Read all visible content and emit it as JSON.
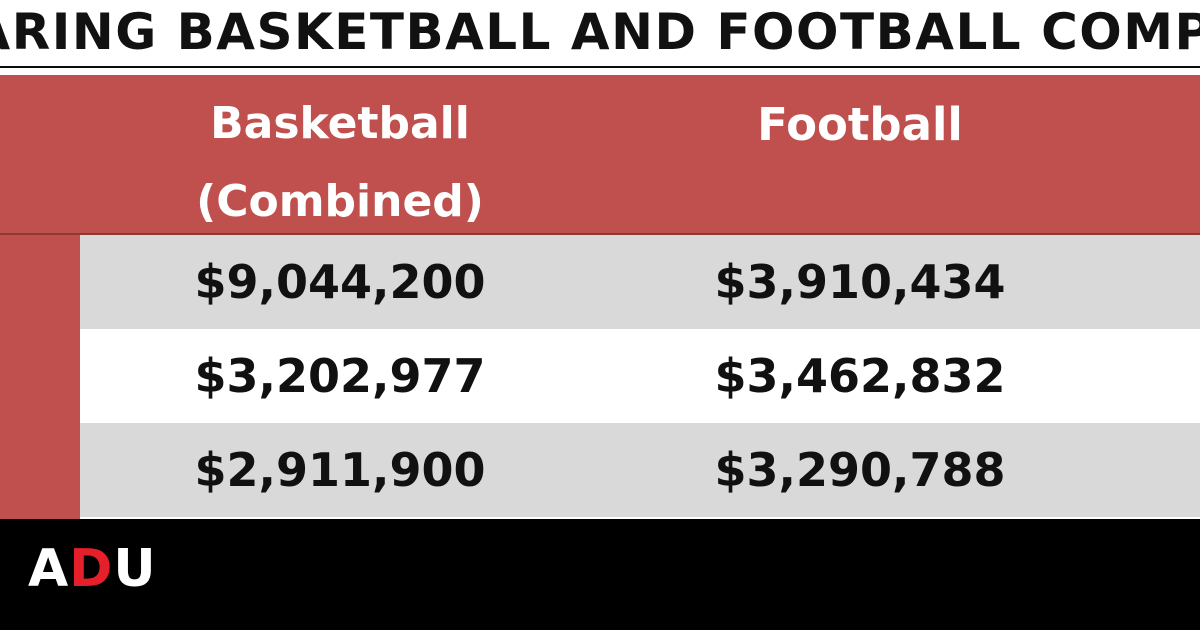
{
  "title": "PARING BASKETBALL AND FOOTBALL COMPENSATION",
  "columns": {
    "basketball": "Basketball (Combined)",
    "football": "Football"
  },
  "rows": [
    {
      "basketball": "$9,044,200",
      "football": "$3,910,434"
    },
    {
      "basketball": "$3,202,977",
      "football": "$3,462,832"
    },
    {
      "basketball": "$2,911,900",
      "football": "$3,290,788"
    }
  ],
  "logo": {
    "part1": "A",
    "part2": "D",
    "part3": "U"
  },
  "colors": {
    "header": "#c0504d",
    "row_shaded": "#d9d9d9",
    "footer": "#000000",
    "logo_accent": "#e5202a"
  }
}
